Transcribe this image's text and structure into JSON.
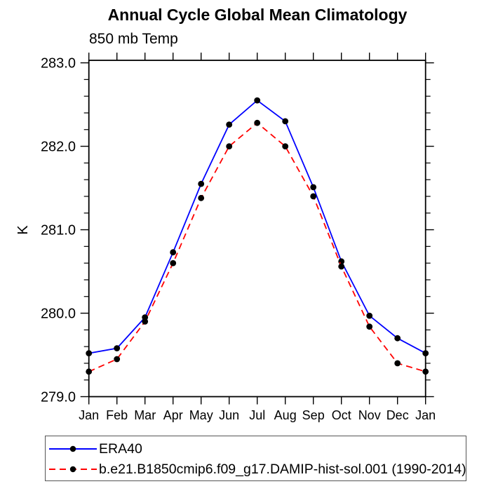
{
  "chart_data": {
    "type": "line",
    "title": "Annual Cycle Global Mean Climatology",
    "subtitle": "850 mb Temp",
    "ylabel": "K",
    "xlabel": "",
    "categories": [
      "Jan",
      "Feb",
      "Mar",
      "Apr",
      "May",
      "Jun",
      "Jul",
      "Aug",
      "Sep",
      "Oct",
      "Nov",
      "Dec",
      "Jan"
    ],
    "ylim": [
      279.0,
      283.03
    ],
    "yticks": [
      {
        "value": 279.0,
        "label": "279.0"
      },
      {
        "value": 280.0,
        "label": "280.0"
      },
      {
        "value": 281.0,
        "label": "281.0"
      },
      {
        "value": 282.0,
        "label": "282.0"
      },
      {
        "value": 283.0,
        "label": "283.0"
      }
    ],
    "y_minor_step": 0.2,
    "grid": false,
    "legend_position": "bottom-left",
    "axis_color": "#000000",
    "marker_color": "#000000",
    "series": [
      {
        "name": "ERA40",
        "color": "#0000ff",
        "style": "solid",
        "marker": "circle",
        "values": [
          279.52,
          279.58,
          279.95,
          280.73,
          281.55,
          282.26,
          282.55,
          282.3,
          281.51,
          280.62,
          279.97,
          279.7,
          279.52
        ]
      },
      {
        "name": "b.e21.B1850cmip6.f09_g17.DAMIP-hist-sol.001 (1990-2014)",
        "color": "#ff0000",
        "style": "dashed",
        "marker": "circle",
        "values": [
          279.3,
          279.45,
          279.9,
          280.6,
          281.38,
          282.0,
          282.28,
          282.0,
          281.4,
          280.56,
          279.84,
          279.4,
          279.3
        ]
      }
    ]
  }
}
